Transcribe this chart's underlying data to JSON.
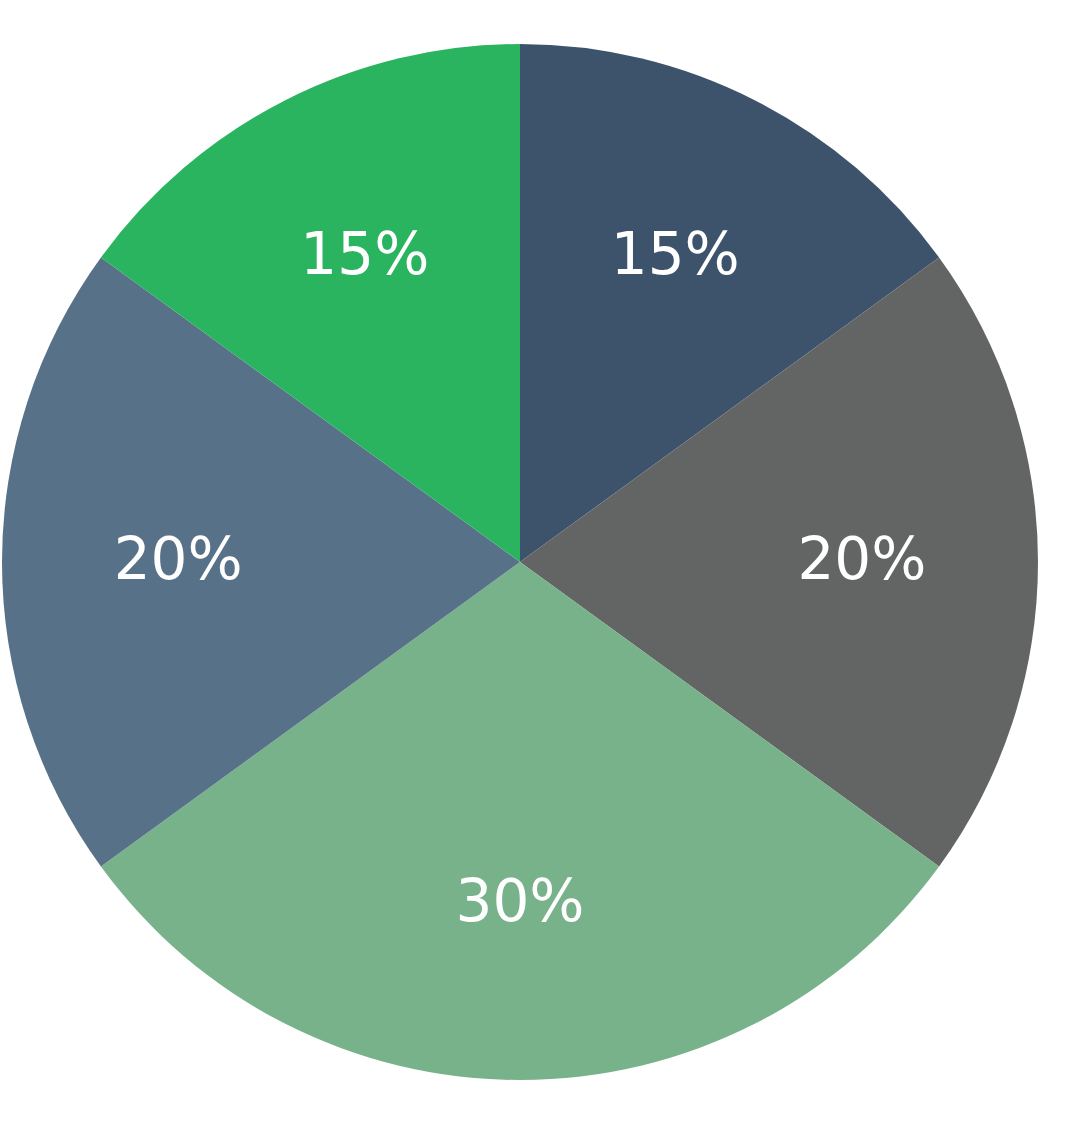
{
  "chart_data": {
    "type": "pie",
    "categories": [
      null,
      null,
      null,
      null,
      null
    ],
    "values": [
      15,
      20,
      30,
      20,
      15
    ],
    "colors": [
      "#3c536b",
      "#636464",
      "#78b28b",
      "#577189",
      "#2bb45f"
    ],
    "value_labels": [
      "15%",
      "20%",
      "30%",
      "20%",
      "15%"
    ]
  }
}
